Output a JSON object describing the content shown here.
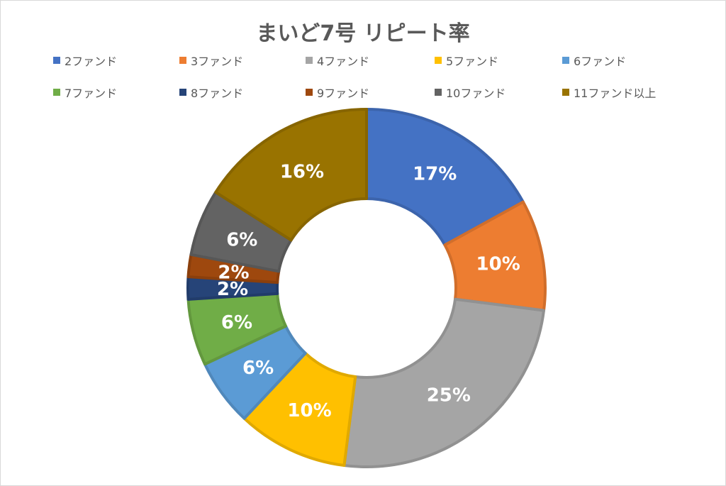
{
  "chart_data": {
    "type": "pie",
    "subtype": "doughnut",
    "title": "まいど7号 リピート率",
    "legend_position": "top",
    "categories": [
      "2ファンド",
      "3ファンド",
      "4ファンド",
      "5ファンド",
      "6ファンド",
      "7ファンド",
      "8ファンド",
      "9ファンド",
      "10ファンド",
      "11ファンド以上"
    ],
    "values": [
      17,
      10,
      25,
      10,
      6,
      6,
      2,
      2,
      6,
      16
    ],
    "labels": [
      "17%",
      "10%",
      "25%",
      "10%",
      "6%",
      "6%",
      "2%",
      "2%",
      "6%",
      "16%"
    ],
    "colors": [
      "#4472C4",
      "#ED7D31",
      "#A5A5A5",
      "#FFC000",
      "#5B9BD5",
      "#70AD47",
      "#264478",
      "#9E480E",
      "#636363",
      "#997300"
    ]
  }
}
